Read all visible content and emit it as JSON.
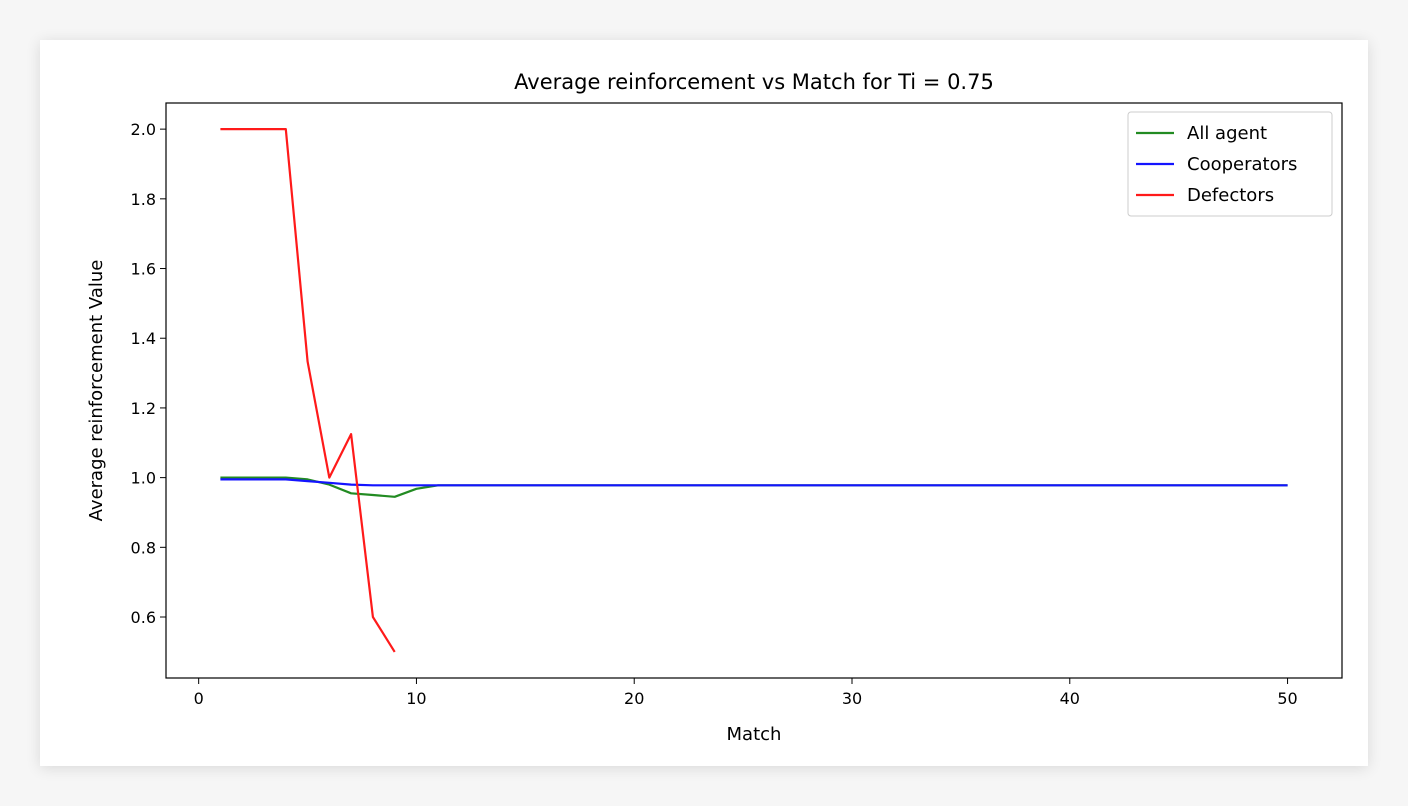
{
  "chart_data": {
    "type": "line",
    "title": "Average reinforcement vs Match for Ti = 0.75",
    "xlabel": "Match",
    "ylabel": "Average reinforcement Value",
    "xlim": [
      -1.5,
      52.5
    ],
    "ylim": [
      0.425,
      2.075
    ],
    "xticks": [
      0,
      10,
      20,
      30,
      40,
      50
    ],
    "yticks": [
      0.6,
      0.8,
      1.0,
      1.2,
      1.4,
      1.6,
      1.8,
      2.0
    ],
    "xtick_labels": [
      "0",
      "10",
      "20",
      "30",
      "40",
      "50"
    ],
    "ytick_labels": [
      "0.6",
      "0.8",
      "1.0",
      "1.2",
      "1.4",
      "1.6",
      "1.8",
      "2.0"
    ],
    "grid": false,
    "legend_position": "top-right",
    "series": [
      {
        "name": "All agent",
        "color": "#228B22",
        "x": [
          1,
          2,
          3,
          4,
          5,
          6,
          7,
          8,
          9,
          10,
          11,
          12,
          13,
          14,
          15,
          16,
          17,
          18,
          19,
          20,
          21,
          22,
          23,
          24,
          25,
          26,
          27,
          28,
          29,
          30,
          31,
          32,
          33,
          34,
          35,
          36,
          37,
          38,
          39,
          40,
          41,
          42,
          43,
          44,
          45,
          46,
          47,
          48,
          49,
          50
        ],
        "y": [
          1.0,
          1.0,
          1.0,
          1.0,
          0.995,
          0.98,
          0.955,
          0.95,
          0.945,
          0.968,
          0.978,
          0.978,
          0.978,
          0.978,
          0.978,
          0.978,
          0.978,
          0.978,
          0.978,
          0.978,
          0.978,
          0.978,
          0.978,
          0.978,
          0.978,
          0.978,
          0.978,
          0.978,
          0.978,
          0.978,
          0.978,
          0.978,
          0.978,
          0.978,
          0.978,
          0.978,
          0.978,
          0.978,
          0.978,
          0.978,
          0.978,
          0.978,
          0.978,
          0.978,
          0.978,
          0.978,
          0.978,
          0.978,
          0.978,
          0.978
        ]
      },
      {
        "name": "Cooperators",
        "color": "#1414ff",
        "x": [
          1,
          2,
          3,
          4,
          5,
          6,
          7,
          8,
          9,
          10,
          11,
          12,
          13,
          14,
          15,
          16,
          17,
          18,
          19,
          20,
          21,
          22,
          23,
          24,
          25,
          26,
          27,
          28,
          29,
          30,
          31,
          32,
          33,
          34,
          35,
          36,
          37,
          38,
          39,
          40,
          41,
          42,
          43,
          44,
          45,
          46,
          47,
          48,
          49,
          50
        ],
        "y": [
          0.995,
          0.995,
          0.995,
          0.995,
          0.99,
          0.985,
          0.98,
          0.978,
          0.978,
          0.978,
          0.978,
          0.978,
          0.978,
          0.978,
          0.978,
          0.978,
          0.978,
          0.978,
          0.978,
          0.978,
          0.978,
          0.978,
          0.978,
          0.978,
          0.978,
          0.978,
          0.978,
          0.978,
          0.978,
          0.978,
          0.978,
          0.978,
          0.978,
          0.978,
          0.978,
          0.978,
          0.978,
          0.978,
          0.978,
          0.978,
          0.978,
          0.978,
          0.978,
          0.978,
          0.978,
          0.978,
          0.978,
          0.978,
          0.978,
          0.978
        ]
      },
      {
        "name": "Defectors",
        "color": "#ff1a1a",
        "x": [
          1,
          2,
          3,
          4,
          5,
          6,
          7,
          8,
          9
        ],
        "y": [
          2.0,
          2.0,
          2.0,
          2.0,
          1.333,
          1.0,
          1.125,
          0.6,
          0.5
        ]
      }
    ]
  }
}
